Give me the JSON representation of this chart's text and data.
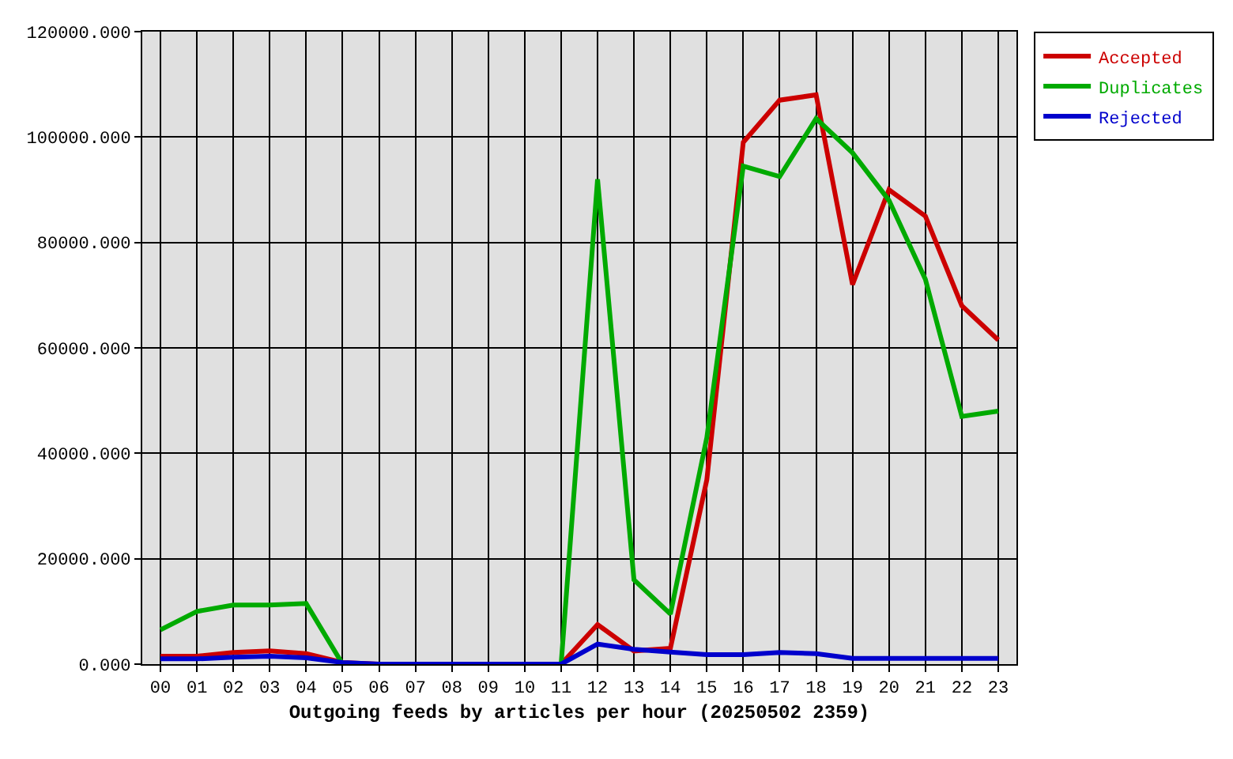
{
  "chart_data": {
    "type": "line",
    "xlabel": "Outgoing feeds by articles per hour (20250502 2359)",
    "categories": [
      "00",
      "01",
      "02",
      "03",
      "04",
      "05",
      "06",
      "07",
      "08",
      "09",
      "10",
      "11",
      "12",
      "13",
      "14",
      "15",
      "16",
      "17",
      "18",
      "19",
      "20",
      "21",
      "22",
      "23"
    ],
    "series": [
      {
        "name": "Accepted",
        "color": "#cc0000",
        "values": [
          1500,
          1500,
          2200,
          2500,
          2000,
          300,
          0,
          0,
          0,
          0,
          0,
          0,
          7500,
          2500,
          3000,
          35000,
          99000,
          107000,
          108000,
          72000,
          90000,
          85000,
          68000,
          61500
        ]
      },
      {
        "name": "Duplicates",
        "color": "#00aa00",
        "values": [
          6500,
          10000,
          11200,
          11200,
          11500,
          0,
          0,
          0,
          0,
          0,
          0,
          0,
          92000,
          16000,
          9500,
          43000,
          94500,
          92500,
          103500,
          97000,
          88000,
          73000,
          47000,
          48000
        ]
      },
      {
        "name": "Rejected",
        "color": "#0000cc",
        "values": [
          1000,
          1000,
          1300,
          1500,
          1200,
          300,
          0,
          0,
          0,
          0,
          0,
          0,
          3800,
          2800,
          2300,
          1800,
          1800,
          2200,
          2000,
          1100,
          1100,
          1100,
          1100,
          1100
        ]
      }
    ],
    "ylim": [
      0,
      120000
    ],
    "yticks": [
      {
        "value": 0,
        "label": "0.000"
      },
      {
        "value": 20000,
        "label": "20000.000"
      },
      {
        "value": 40000,
        "label": "40000.000"
      },
      {
        "value": 60000,
        "label": "60000.000"
      },
      {
        "value": 80000,
        "label": "80000.000"
      },
      {
        "value": 100000,
        "label": "100000.000"
      },
      {
        "value": 120000,
        "label": "120000.000"
      }
    ],
    "grid": true,
    "legend": "top right",
    "marker": "none",
    "line_style": "solid"
  }
}
